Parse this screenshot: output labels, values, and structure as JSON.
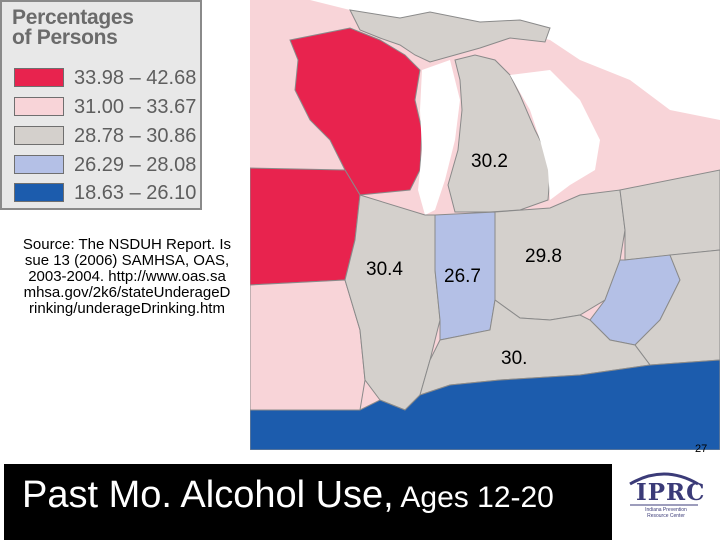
{
  "legend": {
    "title": "Percentages\nof Persons",
    "items": [
      {
        "label": "33.98 – 42.68",
        "color": "#e8234e"
      },
      {
        "label": "31.00 – 33.67",
        "color": "#f8d4d8"
      },
      {
        "label": "28.78 – 30.86",
        "color": "#d4d0cc"
      },
      {
        "label": "26.29 – 28.08",
        "color": "#b4c0e6"
      },
      {
        "label": "18.63 – 26.10",
        "color": "#1c5cad"
      }
    ]
  },
  "source": "Source: The NSDUH Report.  Issue 13 (2006)  SAMHSA, OAS, 2003-2004.  http://www.oas.samhsa.gov/2k6/stateUnderageDrinking/underageDrinking.htm",
  "map": {
    "labels": [
      {
        "id": "michigan",
        "text": "30.2"
      },
      {
        "id": "illinois",
        "text": "30.4"
      },
      {
        "id": "indiana",
        "text": "26.7"
      },
      {
        "id": "ohio",
        "text": "29.8"
      },
      {
        "id": "kentucky",
        "text": "30."
      }
    ]
  },
  "page_number": "27",
  "title": {
    "main": "Past Mo. Alcohol Use,",
    "sub": " Ages 12-20"
  },
  "logo": {
    "name": "IPRC",
    "subtitle": "Indiana Prevention Resource Center"
  }
}
